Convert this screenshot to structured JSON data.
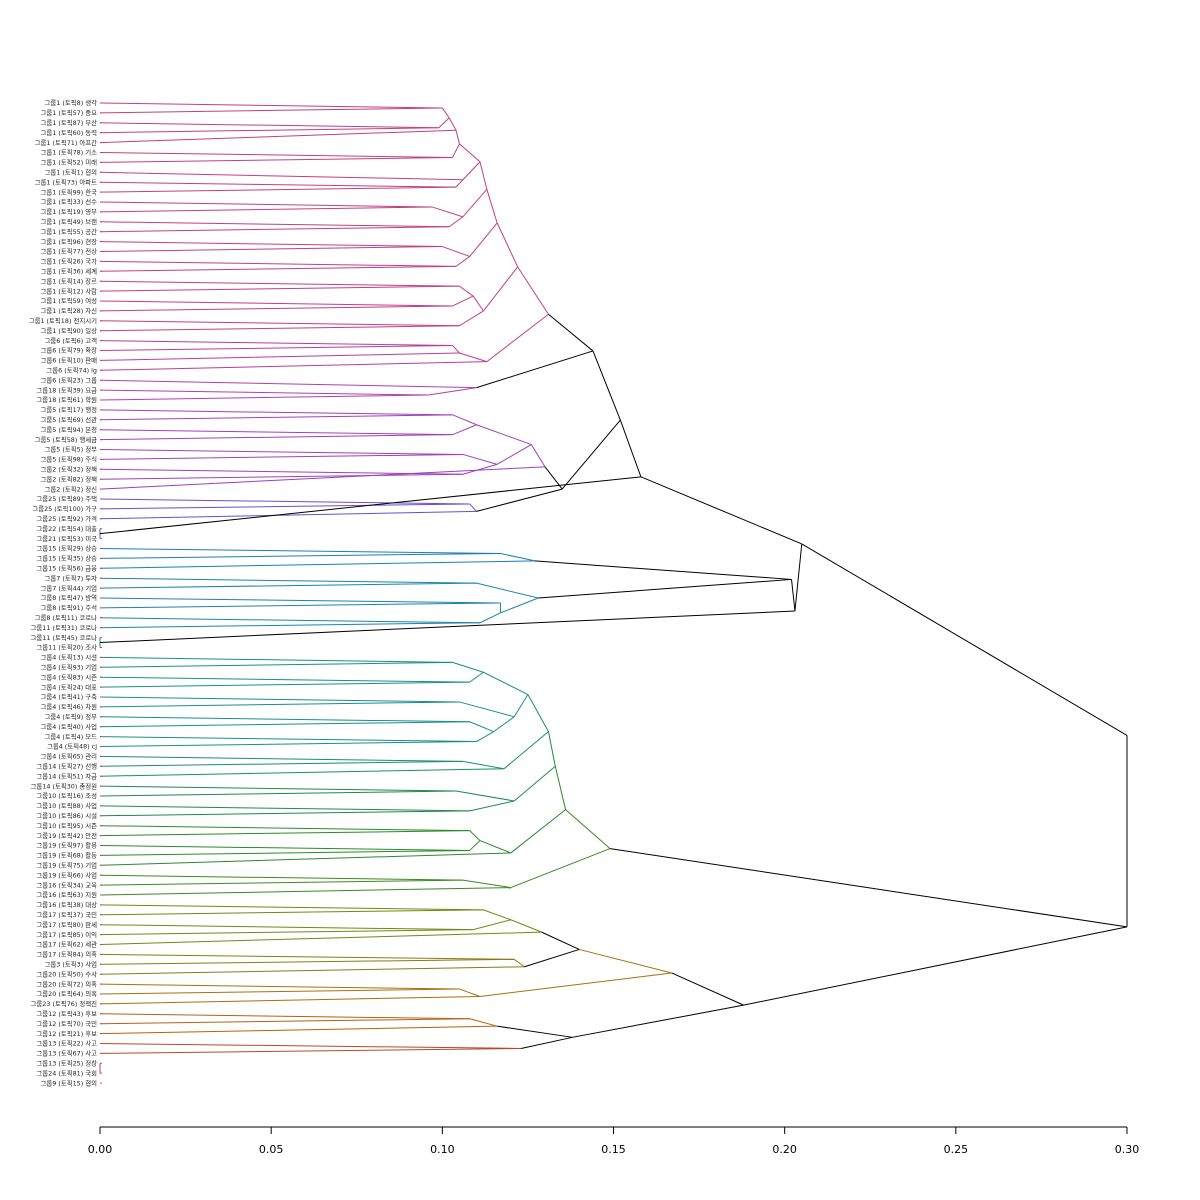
{
  "chart_data": {
    "type": "dendrogram",
    "orientation": "horizontal",
    "xlim": [
      0.0,
      0.3
    ],
    "x_ticks": [
      "0.00",
      "0.05",
      "0.10",
      "0.15",
      "0.20",
      "0.25",
      "0.30"
    ],
    "title": "",
    "xlabel": "",
    "ylabel": "",
    "grid": false,
    "leaves": [
      "그룹1 (토픽8) 생각",
      "그룹1 (토픽57) 중요",
      "그룹1 (토픽87) 부산",
      "그룹1 (토픽60) 동력",
      "그룹1 (토픽71) 아프간",
      "그룹1 (토픽78) 기소",
      "그룹1 (토픽52) 미래",
      "그룹1 (토픽1) 협의",
      "그룹1 (토픽73) 아파트",
      "그룹1 (토픽99) 한국",
      "그룹1 (토픽33) 선수",
      "그룹1 (토픽19) 영부",
      "그룹1 (토픽49) 브랜",
      "그룹1 (토픽55) 공간",
      "그룹1 (토픽96) 현장",
      "그룹1 (토픽77) 전상",
      "그룹1 (토픽26) 국가",
      "그룹1 (토픽36) 세계",
      "그룹1 (토픽14) 장르",
      "그룹1 (토픽12) 사람",
      "그룹1 (토픽59) 여성",
      "그룹1 (토픽28) 자신",
      "그룹1 (토픽18) 전지시기",
      "그룹1 (토픽90) 일상",
      "그룹6 (토픽6) 고객",
      "그룹6 (토픽79) 확장",
      "그룹6 (토픽10) 판매",
      "그룹6 (토픽74) lg",
      "그룹6 (토픽23) 그룹",
      "그룹18 (토픽39) 요금",
      "그룹18 (토픽61) 학원",
      "그룹5 (토픽17) 행정",
      "그룹5 (토픽69) 선관",
      "그룹5 (토픽94) 본청",
      "그룹5 (토픽58) 행세금",
      "그룹5 (토픽5) 정부",
      "그룹5 (토픽98) 주식",
      "그룹2 (토픽32) 정책",
      "그룹2 (토픽82) 정책",
      "그룹2 (토픽2) 정신",
      "그룹25 (토픽89) 주택",
      "그룹25 (토픽100) 가구",
      "그룹25 (토픽92) 가격",
      "그룹22 (토픽54) 대출",
      "그룹21 (토픽53) 미국",
      "그룹15 (토픽29) 상승",
      "그룹15 (토픽35) 상승",
      "그룹15 (토픽56) 금융",
      "그룹7 (토픽7) 투자",
      "그룹7 (토픽44) 기업",
      "그룹8 (토픽47) 방역",
      "그룹8 (토픽91) 주석",
      "그룹8 (토픽11) 코로나",
      "그룹11 (토픽31) 코로나",
      "그룹11 (토픽45) 코로나",
      "그룹11 (토픽20) 조사",
      "그룹4 (토픽13) 시설",
      "그룹4 (토픽93) 기업",
      "그룹4 (토픽83) 시즌",
      "그룹4 (토픽24) 대표",
      "그룹4 (토픽41) 구축",
      "그룹4 (토픽46) 차원",
      "그룹4 (토픽9) 정부",
      "그룹4 (토픽40) 사업",
      "그룹4 (토픽4) 모드",
      "그룹4 (토픽48) cj",
      "그룹4 (토픽65) 관리",
      "그룹14 (토픽27) 선행",
      "그룹14 (토픽51) 자금",
      "그룹14 (토픽30) 총정원",
      "그룹10 (토픽16) 조성",
      "그룹10 (토픽88) 사업",
      "그룹10 (토픽86) 시설",
      "그룹10 (토픽95) 시즌",
      "그룹19 (토픽42) 안전",
      "그룹19 (토픽97) 활용",
      "그룹19 (토픽68) 활동",
      "그룹19 (토픽75) 기업",
      "그룹19 (토픽66) 사업",
      "그룹16 (토픽34) 교육",
      "그룹16 (토픽63) 지원",
      "그룹16 (토픽38) 대상",
      "그룹17 (토픽37) 국민",
      "그룹17 (토픽80) 판세",
      "그룹17 (토픽85) 이익",
      "그룹17 (토픽62) 세관",
      "그룹17 (토픽84) 의혹",
      "그룹3 (토픽3) 사업",
      "그룹20 (토픽50) 수사",
      "그룹20 (토픽72) 의혹",
      "그룹20 (토픽64) 의혹",
      "그룹23 (토픽76) 정책진",
      "그룹12 (토픽43) 후보",
      "그룹12 (토픽70) 국민",
      "그룹12 (토픽21) 후보",
      "그룹13 (토픽22) 사고",
      "그룹13 (토픽67) 사고",
      "그룹13 (토픽25) 정창",
      "그룹24 (토픽81) 국회",
      "그룹9 (토픽15) 협의"
    ],
    "merges": [
      {
        "a": "L0",
        "b": "L1",
        "h": 0.1,
        "color": "#c2407f"
      },
      {
        "a": "L2",
        "b": "L3",
        "h": 0.099,
        "color": "#c2407f"
      },
      {
        "a": "M0",
        "b": "M1",
        "h": 0.102,
        "color": "#c2407f"
      },
      {
        "a": "M2",
        "b": "L4",
        "h": 0.104,
        "color": "#c2407f"
      },
      {
        "a": "L5",
        "b": "L6",
        "h": 0.103,
        "color": "#c2407f"
      },
      {
        "a": "M3",
        "b": "M4",
        "h": 0.105,
        "color": "#c2407f"
      },
      {
        "a": "L8",
        "b": "L9",
        "h": 0.104,
        "color": "#c2407f"
      },
      {
        "a": "L7",
        "b": "M6",
        "h": 0.106,
        "color": "#c2407f"
      },
      {
        "a": "M5",
        "b": "M7",
        "h": 0.111,
        "color": "#c2407f"
      },
      {
        "a": "L10",
        "b": "L11",
        "h": 0.097,
        "color": "#c2407f"
      },
      {
        "a": "L12",
        "b": "L13",
        "h": 0.102,
        "color": "#c2407f"
      },
      {
        "a": "M9",
        "b": "M10",
        "h": 0.106,
        "color": "#c2407f"
      },
      {
        "a": "M8",
        "b": "M11",
        "h": 0.113,
        "color": "#c2407f"
      },
      {
        "a": "L14",
        "b": "L15",
        "h": 0.1,
        "color": "#c2407f"
      },
      {
        "a": "L16",
        "b": "L17",
        "h": 0.104,
        "color": "#c2407f"
      },
      {
        "a": "M13",
        "b": "M14",
        "h": 0.108,
        "color": "#c2407f"
      },
      {
        "a": "M12",
        "b": "M15",
        "h": 0.116,
        "color": "#c2407f"
      },
      {
        "a": "L18",
        "b": "L19",
        "h": 0.105,
        "color": "#c2407f"
      },
      {
        "a": "L20",
        "b": "L21",
        "h": 0.103,
        "color": "#c2407f"
      },
      {
        "a": "M17",
        "b": "M18",
        "h": 0.109,
        "color": "#c2407f"
      },
      {
        "a": "L22",
        "b": "L23",
        "h": 0.105,
        "color": "#c2407f"
      },
      {
        "a": "M19",
        "b": "M20",
        "h": 0.112,
        "color": "#c2407f"
      },
      {
        "a": "M16",
        "b": "M21",
        "h": 0.122,
        "color": "#c2407f"
      },
      {
        "a": "L24",
        "b": "L25",
        "h": 0.103,
        "color": "#b83d9a"
      },
      {
        "a": "M23",
        "b": "L26",
        "h": 0.105,
        "color": "#b83d9a"
      },
      {
        "a": "M24",
        "b": "L27",
        "h": 0.113,
        "color": "#b83d9a"
      },
      {
        "a": "M22",
        "b": "M25",
        "h": 0.131,
        "color": "#c2407f"
      },
      {
        "a": "L29",
        "b": "L30",
        "h": 0.096,
        "color": "#b040b0"
      },
      {
        "a": "L28",
        "b": "M27",
        "h": 0.11,
        "color": "#b040b0"
      },
      {
        "a": "M26",
        "b": "M28",
        "h": 0.144,
        "color": "#000000"
      },
      {
        "a": "L31",
        "b": "L32",
        "h": 0.103,
        "color": "#a040b8"
      },
      {
        "a": "L33",
        "b": "L34",
        "h": 0.103,
        "color": "#a040b8"
      },
      {
        "a": "M30",
        "b": "M31",
        "h": 0.11,
        "color": "#a040b8"
      },
      {
        "a": "L35",
        "b": "L36",
        "h": 0.106,
        "color": "#a040b8"
      },
      {
        "a": "L37",
        "b": "L38",
        "h": 0.106,
        "color": "#a040b8"
      },
      {
        "a": "M33",
        "b": "M34",
        "h": 0.116,
        "color": "#a040b8"
      },
      {
        "a": "M32",
        "b": "M35",
        "h": 0.126,
        "color": "#a040b8"
      },
      {
        "a": "M36",
        "b": "L39",
        "h": 0.13,
        "color": "#9a3fc0"
      },
      {
        "a": "L40",
        "b": "L41",
        "h": 0.108,
        "color": "#6b4fc8"
      },
      {
        "a": "M38",
        "b": "L42",
        "h": 0.11,
        "color": "#6b4fc8"
      },
      {
        "a": "M37",
        "b": "M39",
        "h": 0.135,
        "color": "#000000"
      },
      {
        "a": "M29",
        "b": "M40",
        "h": 0.152,
        "color": "#000000"
      },
      {
        "a": "L43",
        "b": "L44",
        "h": 0.0,
        "color": "#3f62c0"
      },
      {
        "a": "M41",
        "b": "M42",
        "h": 0.158,
        "color": "#000000"
      },
      {
        "a": "L45",
        "b": "L46",
        "h": 0.117,
        "color": "#1a7fb8"
      },
      {
        "a": "M44",
        "b": "L47",
        "h": 0.127,
        "color": "#1a7fb8"
      },
      {
        "a": "L48",
        "b": "L49",
        "h": 0.11,
        "color": "#1c85a8"
      },
      {
        "a": "L50",
        "b": "L51",
        "h": 0.117,
        "color": "#1c85a8"
      },
      {
        "a": "L52",
        "b": "L53",
        "h": 0.111,
        "color": "#1c85a8"
      },
      {
        "a": "M47",
        "b": "M48",
        "h": 0.117,
        "color": "#1c85a8"
      },
      {
        "a": "M46",
        "b": "M49",
        "h": 0.128,
        "color": "#1c85a8"
      },
      {
        "a": "M45",
        "b": "M50",
        "h": 0.202,
        "color": "#000000"
      },
      {
        "a": "L54",
        "b": "L55",
        "h": 0.0,
        "color": "#1a8a9a"
      },
      {
        "a": "M51",
        "b": "M52",
        "h": 0.203,
        "color": "#000000"
      },
      {
        "a": "M43",
        "b": "M53",
        "h": 0.205,
        "color": "#000000"
      },
      {
        "a": "L56",
        "b": "L57",
        "h": 0.103,
        "color": "#1a8f87"
      },
      {
        "a": "L58",
        "b": "L59",
        "h": 0.108,
        "color": "#1a8f87"
      },
      {
        "a": "M55",
        "b": "M56",
        "h": 0.112,
        "color": "#1a8f87"
      },
      {
        "a": "L60",
        "b": "L61",
        "h": 0.105,
        "color": "#1a8f87"
      },
      {
        "a": "L62",
        "b": "L63",
        "h": 0.108,
        "color": "#1a8f87"
      },
      {
        "a": "L64",
        "b": "L65",
        "h": 0.11,
        "color": "#1a8f87"
      },
      {
        "a": "M59",
        "b": "M60",
        "h": 0.115,
        "color": "#1a8f87"
      },
      {
        "a": "M58",
        "b": "M61",
        "h": 0.121,
        "color": "#1a8f87"
      },
      {
        "a": "M57",
        "b": "M62",
        "h": 0.125,
        "color": "#1a8f87"
      },
      {
        "a": "L66",
        "b": "L67",
        "h": 0.106,
        "color": "#1a8f70"
      },
      {
        "a": "M64",
        "b": "L68",
        "h": 0.118,
        "color": "#1a8f70"
      },
      {
        "a": "M63",
        "b": "M65",
        "h": 0.131,
        "color": "#1a8f70"
      },
      {
        "a": "L69",
        "b": "L70",
        "h": 0.104,
        "color": "#1f8a4a"
      },
      {
        "a": "L71",
        "b": "L72",
        "h": 0.108,
        "color": "#1f8a4a"
      },
      {
        "a": "M67",
        "b": "M68",
        "h": 0.121,
        "color": "#1f8a4a"
      },
      {
        "a": "M66",
        "b": "M69",
        "h": 0.133,
        "color": "#1f8a4a"
      },
      {
        "a": "L73",
        "b": "L74",
        "h": 0.108,
        "color": "#2b8a2b"
      },
      {
        "a": "L75",
        "b": "L76",
        "h": 0.108,
        "color": "#2b8a2b"
      },
      {
        "a": "M71",
        "b": "M72",
        "h": 0.111,
        "color": "#2b8a2b"
      },
      {
        "a": "M73",
        "b": "L77",
        "h": 0.12,
        "color": "#2b8a2b"
      },
      {
        "a": "M70",
        "b": "M74",
        "h": 0.136,
        "color": "#2b8a2b"
      },
      {
        "a": "L78",
        "b": "L79",
        "h": 0.106,
        "color": "#3c8a1e"
      },
      {
        "a": "M76",
        "b": "L80",
        "h": 0.12,
        "color": "#3c8a1e"
      },
      {
        "a": "M75",
        "b": "M77",
        "h": 0.149,
        "color": "#3c8a1e"
      },
      {
        "a": "L81",
        "b": "L82",
        "h": 0.112,
        "color": "#6e8a10"
      },
      {
        "a": "L83",
        "b": "L84",
        "h": 0.109,
        "color": "#6e8a10"
      },
      {
        "a": "M79",
        "b": "M80",
        "h": 0.12,
        "color": "#6e8a10"
      },
      {
        "a": "M81",
        "b": "L85",
        "h": 0.129,
        "color": "#6e8a10"
      },
      {
        "a": "L86",
        "b": "L87",
        "h": 0.121,
        "color": "#8a7a10"
      },
      {
        "a": "M83",
        "b": "L88",
        "h": 0.124,
        "color": "#8a7a10"
      },
      {
        "a": "M82",
        "b": "M84",
        "h": 0.14,
        "color": "#000000"
      },
      {
        "a": "L89",
        "b": "L90",
        "h": 0.105,
        "color": "#a8700f"
      },
      {
        "a": "M86",
        "b": "L91",
        "h": 0.111,
        "color": "#a8700f"
      },
      {
        "a": "M85",
        "b": "M87",
        "h": 0.167,
        "color": "#a8700f"
      },
      {
        "a": "L92",
        "b": "L93",
        "h": 0.108,
        "color": "#b8600f"
      },
      {
        "a": "M89",
        "b": "L94",
        "h": 0.116,
        "color": "#b8600f"
      },
      {
        "a": "L95",
        "b": "L96",
        "h": 0.123,
        "color": "#b84a2a"
      },
      {
        "a": "M90",
        "b": "M91",
        "h": 0.138,
        "color": "#000000"
      },
      {
        "a": "M88",
        "b": "M92",
        "h": 0.188,
        "color": "#000000"
      },
      {
        "a": "M78",
        "b": "M93",
        "h": 0.3,
        "color": "#000000"
      },
      {
        "a": "M54",
        "b": "M94",
        "h": 0.3,
        "color": "#000000"
      },
      {
        "a": "L97",
        "b": "L98",
        "h": 0.0,
        "color": "#b8405a"
      }
    ]
  }
}
